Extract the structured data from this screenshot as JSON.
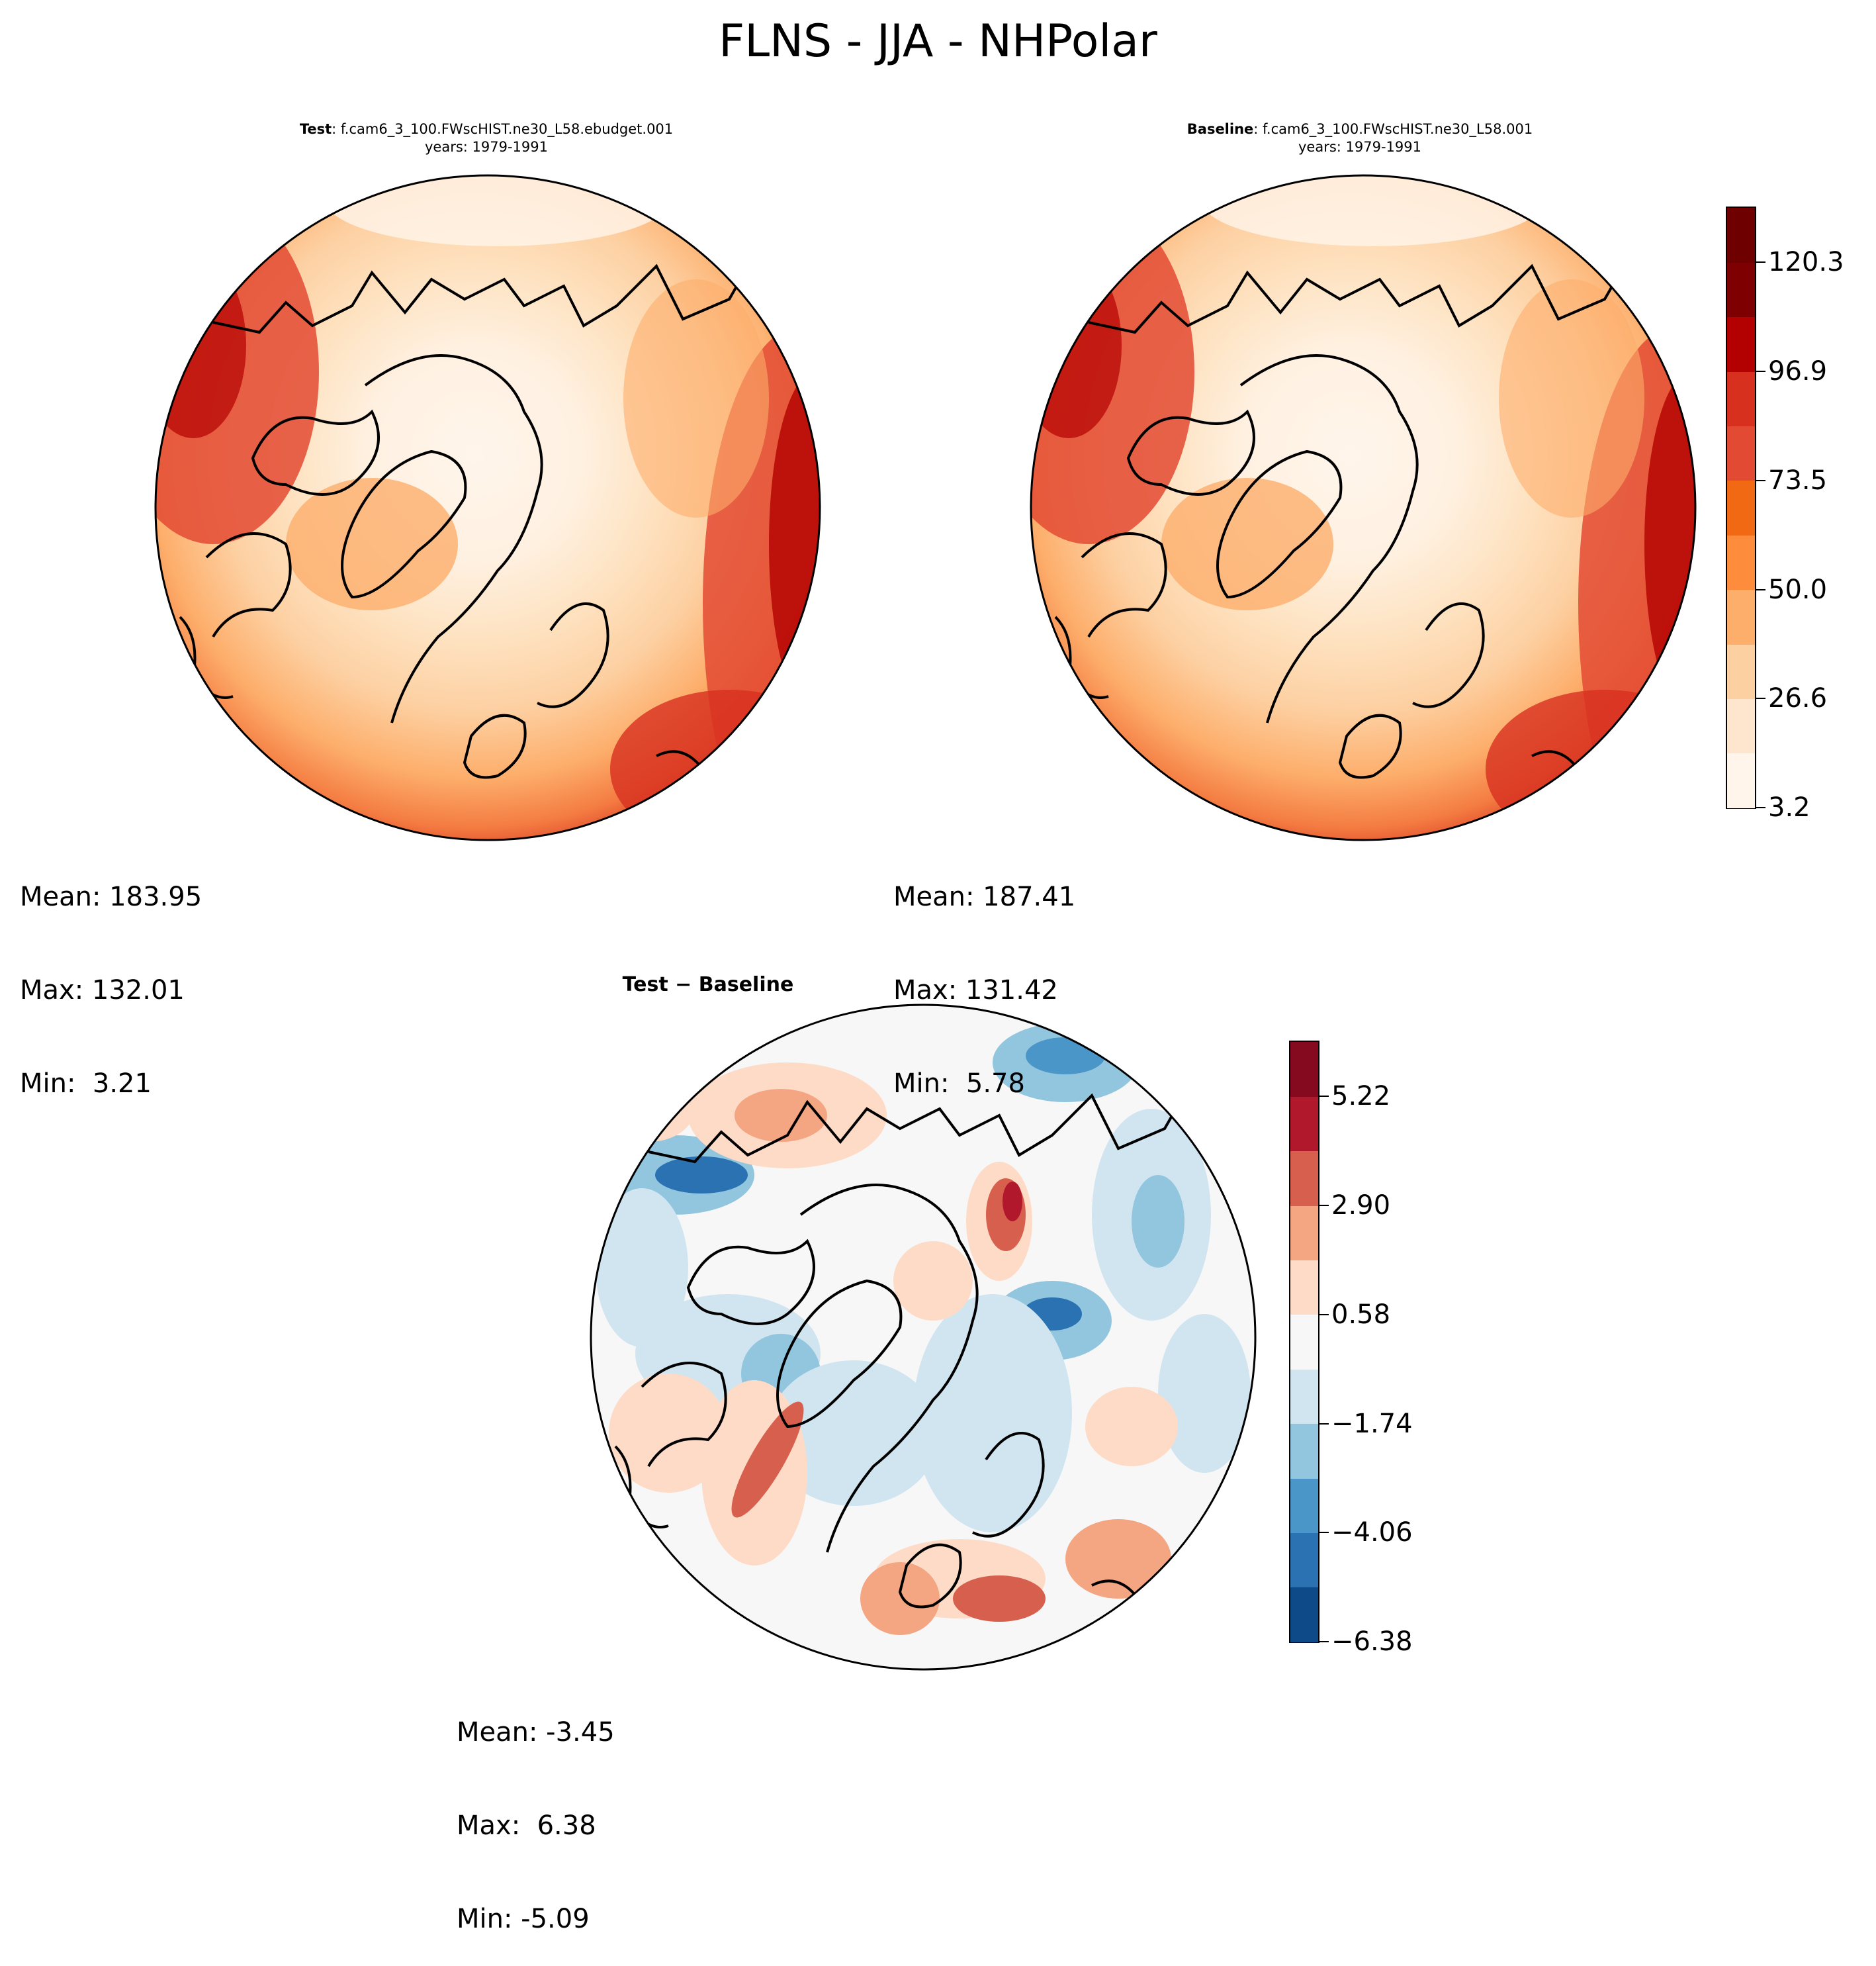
{
  "title": "FLNS - JJA - NHPolar",
  "panels": [
    {
      "id": "test",
      "label_bold": "Test",
      "label_rest": ": f.cam6_3_100.FWscHIST.ne30_L58.ebudget.001",
      "years": "years: 1979-1991",
      "stats": {
        "mean": "Mean: 183.95",
        "max": "Max: 132.01",
        "min": "Min:  3.21"
      }
    },
    {
      "id": "baseline",
      "label_bold": "Baseline",
      "label_rest": ": f.cam6_3_100.FWscHIST.ne30_L58.001",
      "years": "years: 1979-1991",
      "stats": {
        "mean": "Mean: 187.41",
        "max": "Max: 131.42",
        "min": "Min:  5.78"
      }
    },
    {
      "id": "diff",
      "label": "Test − Baseline",
      "stats": {
        "mean": "Mean: -3.45",
        "max": "Max:  6.38",
        "min": "Min: -5.09"
      }
    }
  ],
  "colorbars": {
    "main": {
      "tick_labels": [
        "3.2",
        "26.6",
        "50.0",
        "73.5",
        "96.9",
        "120.3"
      ],
      "colors": [
        "#fff5eb",
        "#fee6ce",
        "#fdd0a2",
        "#fdae6b",
        "#fd8d3c",
        "#f16913",
        "#e34a33",
        "#d7301f",
        "#b30000",
        "#7f0000",
        "#6e0000"
      ]
    },
    "diff": {
      "tick_labels": [
        "−6.38",
        "−4.06",
        "−1.74",
        "0.58",
        "2.90",
        "5.22"
      ],
      "colors": [
        "#0d4a87",
        "#2b72b3",
        "#4b96c8",
        "#92c5de",
        "#d1e5f0",
        "#f7f7f7",
        "#fddbc7",
        "#f4a582",
        "#d6604d",
        "#b2182b",
        "#85091f"
      ]
    }
  },
  "chart_data": [
    {
      "type": "heatmap",
      "title": "Test: f.cam6_3_100.FWscHIST.ne30_L58.ebudget.001",
      "subtitle": "years: 1979-1991",
      "projection": "north polar stereographic",
      "colorbar_ticks": [
        3.2,
        26.6,
        50.0,
        73.5,
        96.9,
        120.3
      ],
      "range": [
        3.2,
        132.01
      ],
      "mean": 183.95,
      "max": 132.01,
      "min": 3.21
    },
    {
      "type": "heatmap",
      "title": "Baseline: f.cam6_3_100.FWscHIST.ne30_L58.001",
      "subtitle": "years: 1979-1991",
      "projection": "north polar stereographic",
      "colorbar_ticks": [
        3.2,
        26.6,
        50.0,
        73.5,
        96.9,
        120.3
      ],
      "range": [
        3.2,
        131.42
      ],
      "mean": 187.41,
      "max": 131.42,
      "min": 5.78
    },
    {
      "type": "heatmap",
      "title": "Test − Baseline",
      "projection": "north polar stereographic",
      "colorbar_ticks": [
        -6.38,
        -4.06,
        -1.74,
        0.58,
        2.9,
        5.22
      ],
      "range": [
        -6.38,
        6.38
      ],
      "mean": -3.45,
      "max": 6.38,
      "min": -5.09
    }
  ]
}
